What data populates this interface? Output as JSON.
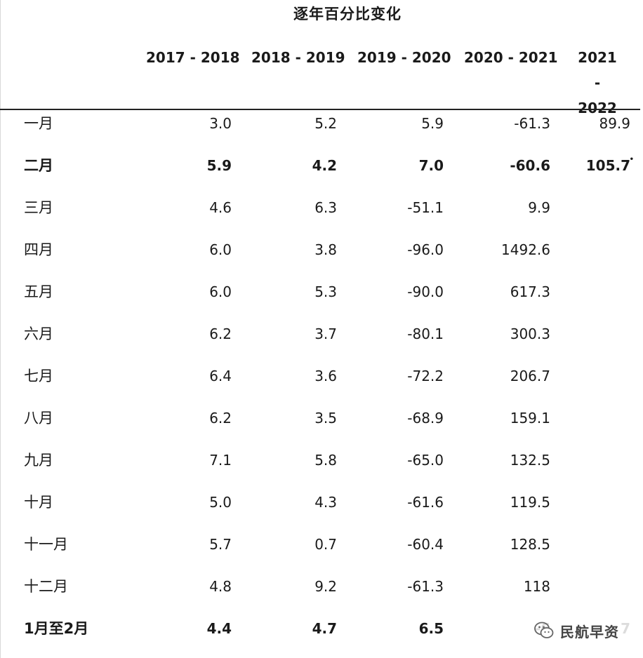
{
  "table": {
    "title": "逐年百分比变化",
    "headers": [
      "2017 - 2018",
      "2018 - 2019",
      "2019 - 2020",
      "2020 - 2021",
      "2021 - 2022"
    ],
    "rows": [
      {
        "month": "一月",
        "values": [
          "3.0",
          "5.2",
          "5.9",
          "-61.3",
          "89.9"
        ],
        "bold": false
      },
      {
        "month": "二月",
        "values": [
          "5.9",
          "4.2",
          "7.0",
          "-60.6",
          "105.7"
        ],
        "bold": true
      },
      {
        "month": "三月",
        "values": [
          "4.6",
          "6.3",
          "-51.1",
          "9.9",
          ""
        ],
        "bold": false
      },
      {
        "month": "四月",
        "values": [
          "6.0",
          "3.8",
          "-96.0",
          "1492.6",
          ""
        ],
        "bold": false
      },
      {
        "month": "五月",
        "values": [
          "6.0",
          "5.3",
          "-90.0",
          "617.3",
          ""
        ],
        "bold": false
      },
      {
        "month": "六月",
        "values": [
          "6.2",
          "3.7",
          "-80.1",
          "300.3",
          ""
        ],
        "bold": false
      },
      {
        "month": "七月",
        "values": [
          "6.4",
          "3.6",
          "-72.2",
          "206.7",
          ""
        ],
        "bold": false
      },
      {
        "month": "八月",
        "values": [
          "6.2",
          "3.5",
          "-68.9",
          "159.1",
          ""
        ],
        "bold": false
      },
      {
        "month": "九月",
        "values": [
          "7.1",
          "5.8",
          "-65.0",
          "132.5",
          ""
        ],
        "bold": false
      },
      {
        "month": "十月",
        "values": [
          "5.0",
          "4.3",
          "-61.6",
          "119.5",
          ""
        ],
        "bold": false
      },
      {
        "month": "十一月",
        "values": [
          "5.7",
          "0.7",
          "-60.4",
          "128.5",
          ""
        ],
        "bold": false
      },
      {
        "month": "十二月",
        "values": [
          "4.8",
          "9.2",
          "-61.3",
          "118",
          ""
        ],
        "bold": false
      },
      {
        "month": "1月至2月",
        "values": [
          "4.4",
          "4.7",
          "6.5",
          "-6",
          "7"
        ],
        "bold": true
      }
    ]
  },
  "watermark": {
    "text": "民航早资",
    "icon": "wechat-icon"
  }
}
